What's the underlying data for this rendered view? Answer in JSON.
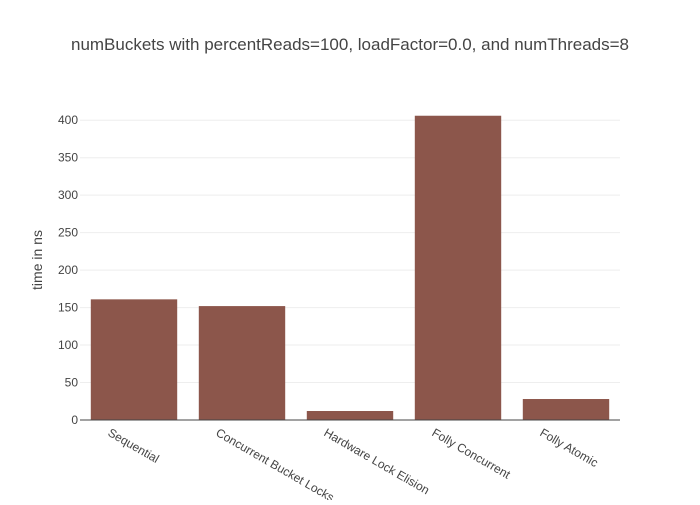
{
  "chart_data": {
    "type": "bar",
    "title": "numBuckets with percentReads=100, loadFactor=0.0, and numThreads=8",
    "xlabel": "",
    "ylabel": "time in ns",
    "categories": [
      "Sequential",
      "Concurrent Bucket Locks",
      "Hardware Lock Elision",
      "Folly Concurrent",
      "Folly Atomic"
    ],
    "values": [
      161,
      152,
      12,
      406,
      28
    ],
    "ylim": [
      0,
      427
    ],
    "yticks": [
      0,
      50,
      100,
      150,
      200,
      250,
      300,
      350,
      400
    ],
    "grid": true,
    "legend": "none",
    "colors": {
      "bar": "#8c564b",
      "grid": "#eeeeee",
      "axis": "#444444",
      "text": "#444444"
    }
  }
}
